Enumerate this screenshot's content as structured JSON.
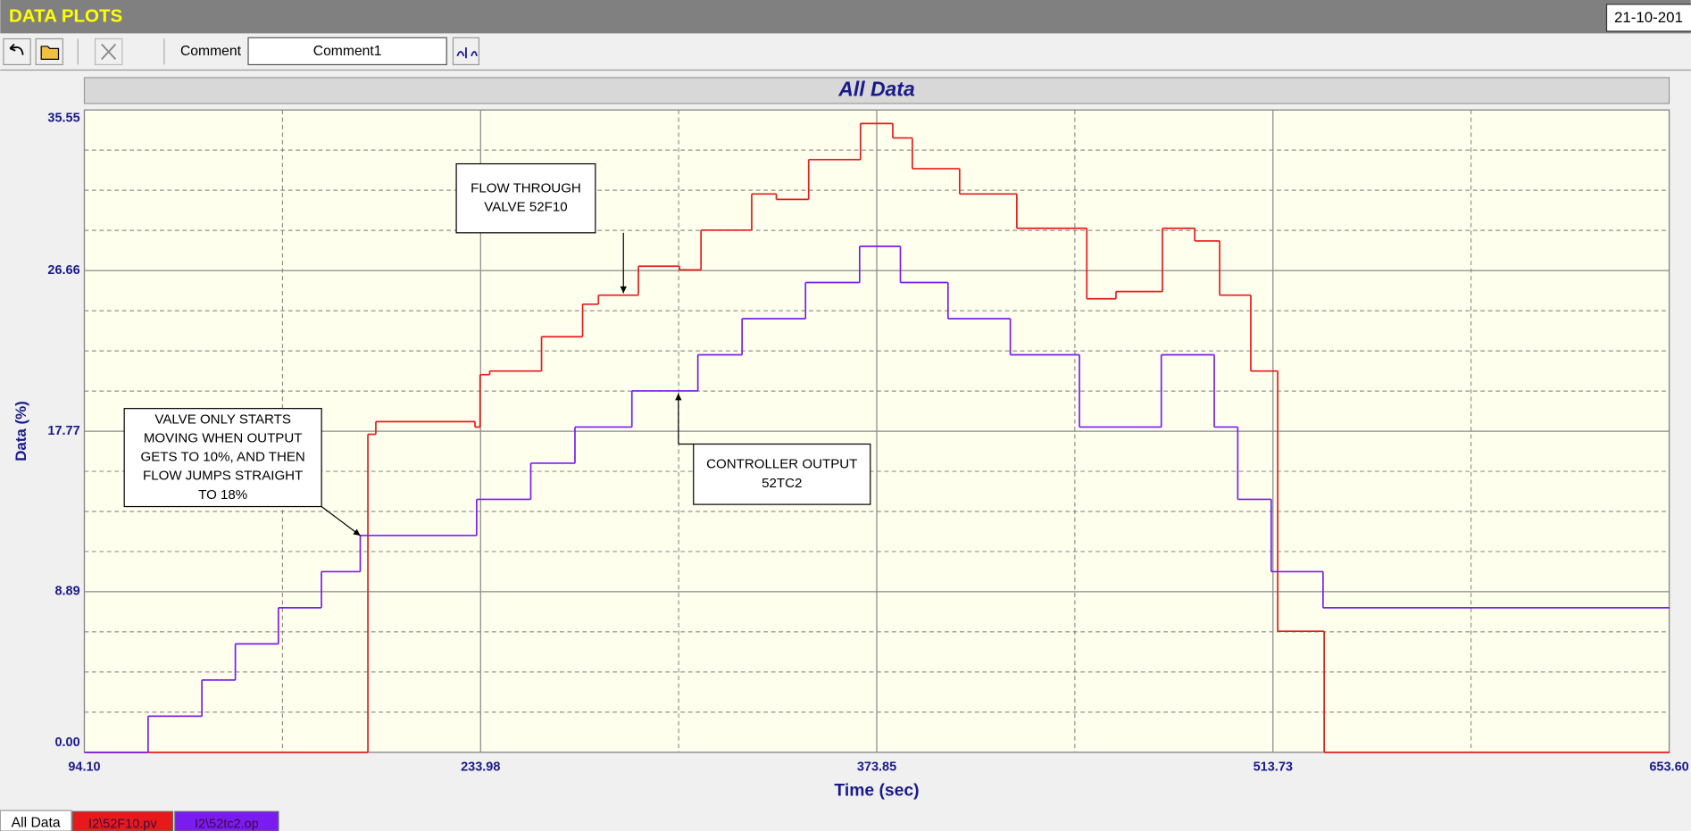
{
  "window": {
    "title": "DATA PLOTS",
    "date": "21-10-201"
  },
  "toolbar": {
    "comment_label": "Comment",
    "comment_value": "Comment1"
  },
  "tabs": [
    "All Data"
  ],
  "chart_data": {
    "type": "line",
    "step": true,
    "title": "All Data",
    "x_label": "Time (sec)",
    "y_label": "Data (%)",
    "xlim": [
      94.1,
      653.6
    ],
    "ylim": [
      0,
      35.55
    ],
    "xticks": [
      {
        "value": 94.1,
        "label": "94.10"
      },
      233.98,
      373.85,
      513.73,
      {
        "value": 653.6,
        "label": "653.60"
      }
    ],
    "yticks": [
      {
        "value": 0,
        "label": "0.00"
      },
      8.89,
      17.77,
      26.66,
      35.55
    ],
    "grid": true,
    "x_minor_divisions": 2,
    "y_minor_divisions": 4,
    "series": [
      {
        "name": "I2\\52F10.pv",
        "color": "#e8191b",
        "x": [
          94.1,
          194.2,
          197.0,
          232.0,
          233.8,
          237.2,
          255.5,
          270.0,
          275.6,
          289.7,
          304.2,
          311.8,
          329.7,
          338.4,
          349.8,
          368.1,
          379.5,
          386.4,
          403.1,
          423.3,
          448.0,
          458.3,
          474.7,
          486.1,
          494.9,
          505.9,
          515.4,
          531.8,
          653.6
        ],
        "values": [
          0,
          17.6,
          18.3,
          18.0,
          20.9,
          21.1,
          23.0,
          24.8,
          25.3,
          26.9,
          26.7,
          28.9,
          30.9,
          30.6,
          32.8,
          34.8,
          34.0,
          32.3,
          30.9,
          29.0,
          25.1,
          25.5,
          29.0,
          28.3,
          25.3,
          21.1,
          6.7,
          0,
          0
        ]
      },
      {
        "name": "I2\\52tc2.op",
        "color": "#7a1cf0",
        "x": [
          94.1,
          116.6,
          135.6,
          147.4,
          162.6,
          177.8,
          191.5,
          232.6,
          251.7,
          267.3,
          287.4,
          310.7,
          326.3,
          348.7,
          367.8,
          382.2,
          399.0,
          421.0,
          445.4,
          474.3,
          493.0,
          501.3,
          513.1,
          531.4,
          653.6
        ],
        "values": [
          0,
          2,
          4,
          6,
          8,
          10,
          12,
          14,
          16,
          18,
          20,
          22,
          24,
          26,
          28,
          26,
          24,
          22,
          18,
          22,
          18,
          14,
          10,
          8,
          8
        ]
      }
    ],
    "annotations": [
      {
        "lines": [
          "FLOW THROUGH",
          "VALVE 52F10"
        ]
      },
      {
        "lines": [
          "VALVE ONLY STARTS",
          "MOVING WHEN OUTPUT",
          "GETS TO 10%, AND THEN",
          "FLOW JUMPS STRAIGHT",
          "TO 18%"
        ]
      },
      {
        "lines": [
          "CONTROLLER OUTPUT",
          "52TC2"
        ]
      }
    ]
  }
}
